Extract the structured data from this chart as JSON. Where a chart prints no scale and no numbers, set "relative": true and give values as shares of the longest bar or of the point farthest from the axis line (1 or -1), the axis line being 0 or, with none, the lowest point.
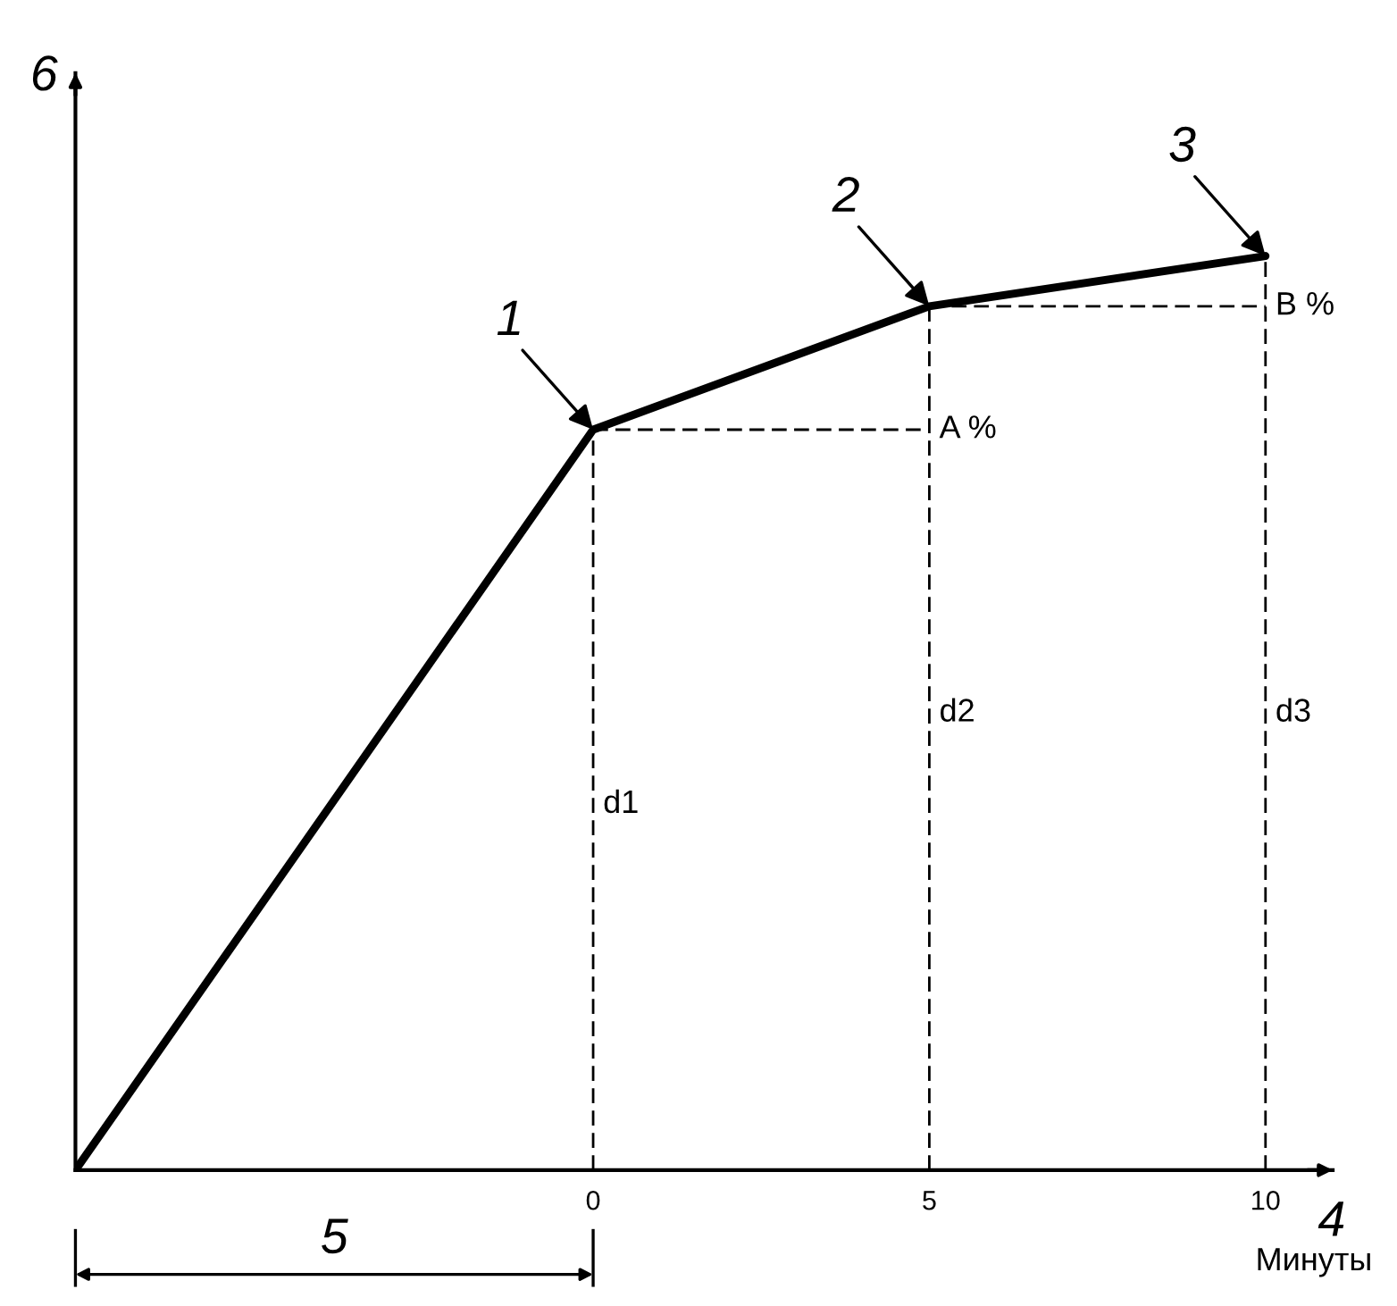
{
  "chart_data": {
    "type": "line",
    "relative": true,
    "ylabel": "6",
    "xlabel": "Минуты",
    "xlim": [
      -7.7,
      11.0
    ],
    "xticks": [
      0,
      5,
      10
    ],
    "grid": false,
    "marker": "none",
    "series": [
      {
        "x": [
          -7.7,
          0,
          5,
          10
        ],
        "values": [
          0,
          0.81,
          0.945,
          1
        ],
        "color": "#000000",
        "line_style": "solid"
      },
      {
        "x": [
          0,
          0
        ],
        "values": [
          0,
          0.81
        ],
        "color": "#000000",
        "line_style": "dashed"
      },
      {
        "x": [
          5,
          5
        ],
        "values": [
          0,
          0.945
        ],
        "color": "#000000",
        "line_style": "dashed"
      },
      {
        "x": [
          10,
          10
        ],
        "values": [
          0,
          1
        ],
        "color": "#000000",
        "line_style": "dashed"
      },
      {
        "x": [
          0,
          5
        ],
        "values": [
          0.81,
          0.81
        ],
        "color": "#000000",
        "line_style": "dashed"
      },
      {
        "x": [
          5,
          10
        ],
        "values": [
          0.945,
          0.945
        ],
        "color": "#000000",
        "line_style": "dashed"
      }
    ],
    "annotations": [
      {
        "text": "1",
        "x": 0,
        "y": 0.81
      },
      {
        "text": "2",
        "x": 5,
        "y": 0.945
      },
      {
        "text": "3",
        "x": 10,
        "y": 1
      },
      {
        "text": "A %",
        "x": 5,
        "y": 0.81
      },
      {
        "text": "B %",
        "x": 10,
        "y": 0.945
      },
      {
        "text": "d1",
        "x": 0,
        "y": 0.4
      },
      {
        "text": "d2",
        "x": 5,
        "y": 0.5
      },
      {
        "text": "d3",
        "x": 10,
        "y": 0.5
      },
      "4",
      "5"
    ]
  }
}
